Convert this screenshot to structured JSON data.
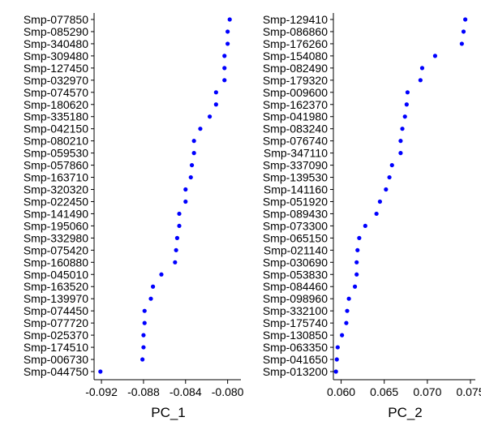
{
  "chart_data": [
    {
      "type": "scatter",
      "xlabel": "PC_1",
      "ylabel": "",
      "xlim": [
        -0.0927,
        -0.0792
      ],
      "xticks": [
        -0.092,
        -0.088,
        -0.084,
        -0.08
      ],
      "xtick_labels": [
        "-0.092",
        "-0.088",
        "-0.084",
        "-0.080"
      ],
      "grid": false,
      "point_color": "#0000ff",
      "categories": [
        "Smp-077850",
        "Smp-085290",
        "Smp-340480",
        "Smp-309480",
        "Smp-127450",
        "Smp-032970",
        "Smp-074570",
        "Smp-180620",
        "Smp-335180",
        "Smp-042150",
        "Smp-080210",
        "Smp-059530",
        "Smp-057860",
        "Smp-163710",
        "Smp-320320",
        "Smp-022450",
        "Smp-141490",
        "Smp-195060",
        "Smp-332980",
        "Smp-075420",
        "Smp-160880",
        "Smp-045010",
        "Smp-163520",
        "Smp-139970",
        "Smp-074450",
        "Smp-077720",
        "Smp-025370",
        "Smp-174510",
        "Smp-006730",
        "Smp-044750"
      ],
      "values": [
        -0.0798,
        -0.08,
        -0.08,
        -0.0803,
        -0.0803,
        -0.0803,
        -0.0811,
        -0.0811,
        -0.0817,
        -0.0826,
        -0.0832,
        -0.0832,
        -0.0834,
        -0.0835,
        -0.084,
        -0.084,
        -0.0846,
        -0.0846,
        -0.0848,
        -0.0849,
        -0.085,
        -0.0863,
        -0.0871,
        -0.0873,
        -0.0879,
        -0.0879,
        -0.088,
        -0.088,
        -0.0881,
        -0.0921
      ]
    },
    {
      "type": "scatter",
      "xlabel": "PC_2",
      "ylabel": "",
      "xlim": [
        0.0591,
        0.075
      ],
      "xticks": [
        0.06,
        0.065,
        0.07,
        0.075
      ],
      "xtick_labels": [
        "0.060",
        "0.065",
        "0.070",
        "0.075"
      ],
      "grid": false,
      "point_color": "#0000ff",
      "categories": [
        "Smp-129410",
        "Smp-086860",
        "Smp-176260",
        "Smp-154080",
        "Smp-082490",
        "Smp-179320",
        "Smp-009600",
        "Smp-162370",
        "Smp-041980",
        "Smp-083240",
        "Smp-076740",
        "Smp-347110",
        "Smp-337090",
        "Smp-139530",
        "Smp-141160",
        "Smp-051920",
        "Smp-089430",
        "Smp-073300",
        "Smp-065150",
        "Smp-021140",
        "Smp-030690",
        "Smp-053830",
        "Smp-084460",
        "Smp-098960",
        "Smp-332100",
        "Smp-175740",
        "Smp-130850",
        "Smp-063350",
        "Smp-041650",
        "Smp-013200"
      ],
      "values": [
        0.0744,
        0.0742,
        0.074,
        0.0709,
        0.0694,
        0.0692,
        0.0677,
        0.0676,
        0.0674,
        0.0671,
        0.0669,
        0.0669,
        0.0659,
        0.0656,
        0.0652,
        0.0645,
        0.0641,
        0.0628,
        0.0621,
        0.0619,
        0.0618,
        0.0618,
        0.0616,
        0.0609,
        0.0607,
        0.0606,
        0.0601,
        0.0596,
        0.0595,
        0.0594
      ]
    }
  ]
}
